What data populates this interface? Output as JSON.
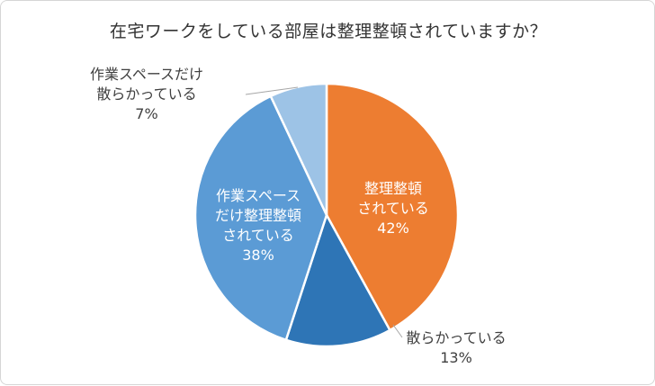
{
  "chart_data": {
    "type": "pie",
    "title": "在宅ワークをしている部屋は整理整頓されていますか？",
    "slices": [
      {
        "label_lines": [
          "整理整頓",
          "されている"
        ],
        "value": 42,
        "value_label": "42%",
        "color": "#ED7D31",
        "label_position": "inside"
      },
      {
        "label_lines": [
          "散らかっている"
        ],
        "value": 13,
        "value_label": "13%",
        "color": "#2E75B6",
        "label_position": "outside"
      },
      {
        "label_lines": [
          "作業スペース",
          "だけ整理整頓",
          "されている"
        ],
        "value": 38,
        "value_label": "38%",
        "color": "#5B9BD5",
        "label_position": "inside"
      },
      {
        "label_lines": [
          "作業スペースだけ",
          "散らかっている"
        ],
        "value": 7,
        "value_label": "7%",
        "color": "#9DC3E6",
        "label_position": "outside"
      }
    ]
  }
}
